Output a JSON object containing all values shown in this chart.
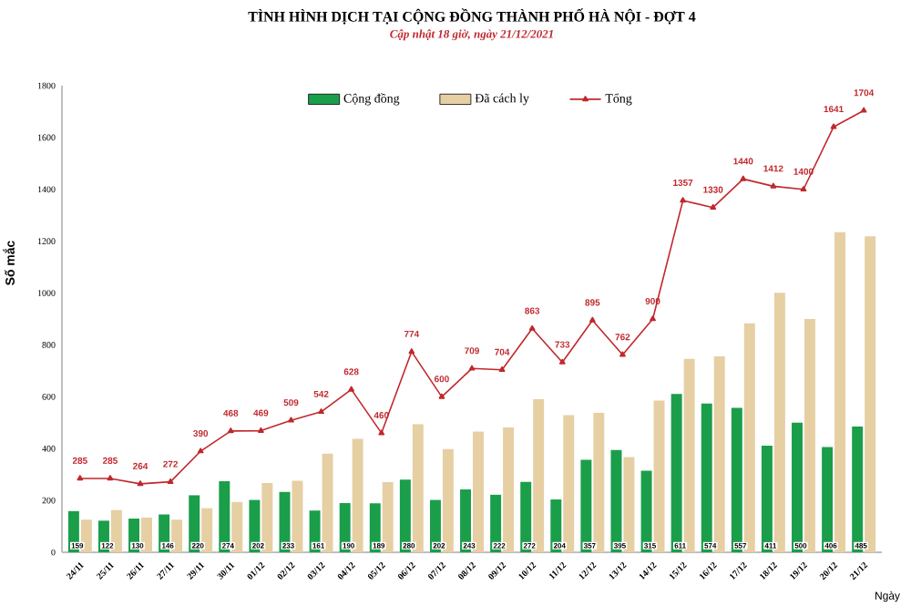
{
  "chart_data": {
    "type": "bar",
    "title": "TÌNH HÌNH DỊCH TẠI CỘNG ĐỒNG THÀNH PHỐ HÀ NỘI - ĐỢT 4",
    "subtitle": "Cập nhật 18 giờ, ngày 21/12/2021",
    "xlabel": "Ngày",
    "ylabel": "Số mắc",
    "categories": [
      "24/11",
      "25/11",
      "26/11",
      "27/11",
      "29/11",
      "30/11",
      "01/12",
      "02/12",
      "03/12",
      "04/12",
      "05/12",
      "06/12",
      "07/12",
      "08/12",
      "09/12",
      "10/12",
      "11/12",
      "12/12",
      "13/12",
      "14/12",
      "15/12",
      "16/12",
      "17/12",
      "18/12",
      "19/12",
      "20/12",
      "21/12"
    ],
    "series": [
      {
        "name": "Cộng đồng",
        "color": "#1a9e4a",
        "values": [
          159,
          122,
          130,
          146,
          220,
          274,
          202,
          233,
          161,
          190,
          189,
          280,
          202,
          243,
          222,
          272,
          204,
          357,
          395,
          315,
          611,
          574,
          557,
          411,
          500,
          406,
          485
        ],
        "value_labels": [
          "159",
          "122",
          "130",
          "146",
          "220",
          "274",
          "202",
          "233",
          "161",
          "190",
          "189",
          "280",
          "202",
          "243",
          "222",
          "272",
          "204",
          "357",
          "395",
          "315",
          "611",
          "574",
          "557",
          "411",
          "500",
          "406",
          "485"
        ]
      },
      {
        "name": "Đã cách ly",
        "color": "#e6cfa3",
        "values": [
          126,
          163,
          134,
          126,
          170,
          194,
          267,
          276,
          381,
          438,
          271,
          494,
          398,
          466,
          482,
          591,
          529,
          538,
          367,
          585,
          746,
          756,
          883,
          1001,
          900,
          1235,
          1219
        ]
      },
      {
        "name": "Tổng",
        "type": "line",
        "color": "#c0282d",
        "marker": "triangle",
        "values": [
          285,
          285,
          264,
          272,
          390,
          468,
          469,
          509,
          542,
          628,
          460,
          774,
          600,
          709,
          704,
          863,
          733,
          895,
          762,
          900,
          1357,
          1330,
          1440,
          1412,
          1400,
          1641,
          1704
        ],
        "value_labels": [
          "285",
          "285",
          "264",
          "272",
          "390",
          "468",
          "469",
          "509",
          "542",
          "628",
          "460",
          "774",
          "600",
          "709",
          "704",
          "863",
          "733",
          "895",
          "762",
          "900",
          "1357",
          "1330",
          "1440",
          "1412",
          "1400",
          "1641",
          "1704"
        ]
      }
    ],
    "ylim": [
      0,
      1800
    ],
    "yticks": [
      0,
      200,
      400,
      600,
      800,
      1000,
      1200,
      1400,
      1600,
      1800
    ],
    "legend": "top"
  }
}
